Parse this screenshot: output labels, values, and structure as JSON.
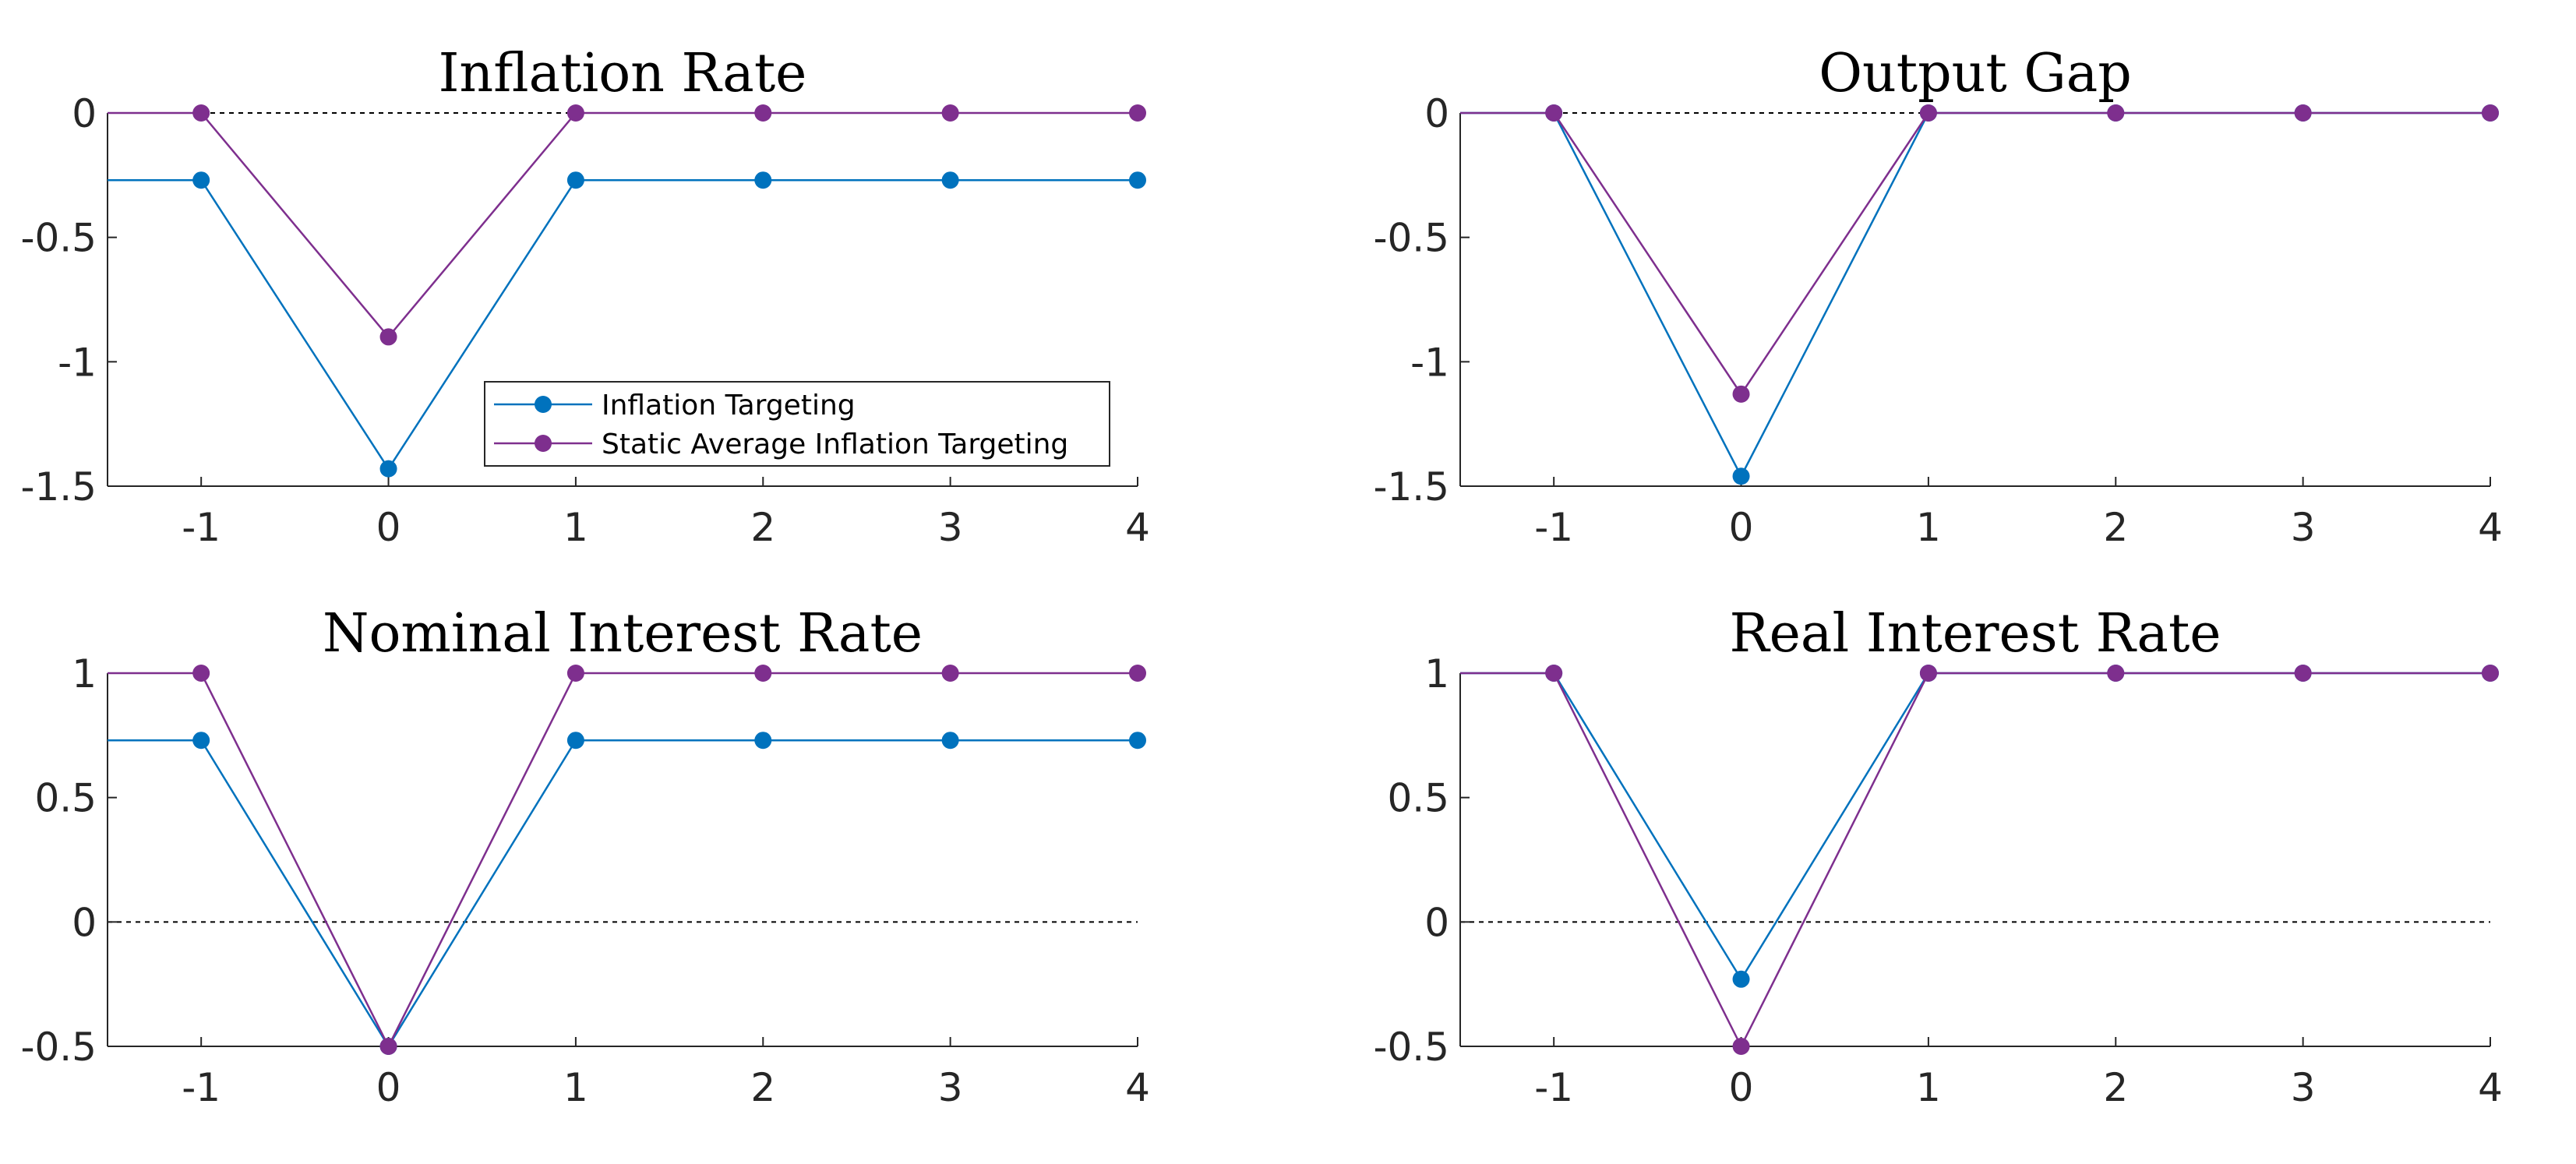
{
  "colors": {
    "inflation_targeting": "#0072BD",
    "static_average_inflation_targeting": "#7E2F8E",
    "axis": "#262626",
    "zero_line": "#000000"
  },
  "legend": {
    "placement": "inside-bottom-right of Inflation Rate panel",
    "entries": [
      "Inflation Targeting",
      "Static Average Inflation Targeting"
    ]
  },
  "chart_data": [
    {
      "type": "line",
      "title": "Inflation Rate",
      "xlabel": "",
      "ylabel": "",
      "xlim": [
        -1.5,
        4
      ],
      "ylim": [
        -1.5,
        0
      ],
      "x_ticks": [
        "-1",
        "0",
        "1",
        "2",
        "3",
        "4"
      ],
      "y_ticks": [
        "0",
        "-0.5",
        "-1",
        "-1.5"
      ],
      "zero_line": true,
      "grid": false,
      "x": [
        -1,
        0,
        1,
        2,
        3,
        4
      ],
      "series": [
        {
          "name": "Inflation Targeting",
          "values": [
            -0.27,
            -1.43,
            -0.27,
            -0.27,
            -0.27,
            -0.27
          ]
        },
        {
          "name": "Static Average Inflation Targeting",
          "values": [
            0,
            -0.9,
            0,
            0,
            0,
            0
          ]
        }
      ]
    },
    {
      "type": "line",
      "title": "Output Gap",
      "xlabel": "",
      "ylabel": "",
      "xlim": [
        -1.5,
        4
      ],
      "ylim": [
        -1.5,
        0
      ],
      "x_ticks": [
        "-1",
        "0",
        "1",
        "2",
        "3",
        "4"
      ],
      "y_ticks": [
        "0",
        "-0.5",
        "-1",
        "-1.5"
      ],
      "zero_line": true,
      "grid": false,
      "x": [
        -1,
        0,
        1,
        2,
        3,
        4
      ],
      "series": [
        {
          "name": "Inflation Targeting",
          "values": [
            0,
            -1.46,
            0,
            0,
            0,
            0
          ]
        },
        {
          "name": "Static Average Inflation Targeting",
          "values": [
            0,
            -1.13,
            0,
            0,
            0,
            0
          ]
        }
      ]
    },
    {
      "type": "line",
      "title": "Nominal Interest Rate",
      "xlabel": "",
      "ylabel": "",
      "xlim": [
        -1.5,
        4
      ],
      "ylim": [
        -0.5,
        1
      ],
      "x_ticks": [
        "-1",
        "0",
        "1",
        "2",
        "3",
        "4"
      ],
      "y_ticks": [
        "1",
        "0.5",
        "0",
        "-0.5"
      ],
      "zero_line": true,
      "grid": false,
      "x": [
        -1,
        0,
        1,
        2,
        3,
        4
      ],
      "series": [
        {
          "name": "Inflation Targeting",
          "values": [
            0.73,
            -0.5,
            0.73,
            0.73,
            0.73,
            0.73
          ]
        },
        {
          "name": "Static Average Inflation Targeting",
          "values": [
            1,
            -0.5,
            1,
            1,
            1,
            1
          ]
        }
      ]
    },
    {
      "type": "line",
      "title": "Real Interest Rate",
      "xlabel": "",
      "ylabel": "",
      "xlim": [
        -1.5,
        4
      ],
      "ylim": [
        -0.5,
        1
      ],
      "x_ticks": [
        "-1",
        "0",
        "1",
        "2",
        "3",
        "4"
      ],
      "y_ticks": [
        "1",
        "0.5",
        "0",
        "-0.5"
      ],
      "zero_line": true,
      "grid": false,
      "x": [
        -1,
        0,
        1,
        2,
        3,
        4
      ],
      "series": [
        {
          "name": "Inflation Targeting",
          "values": [
            1,
            -0.23,
            1,
            1,
            1,
            1
          ]
        },
        {
          "name": "Static Average Inflation Targeting",
          "values": [
            1,
            -0.5,
            1,
            1,
            1,
            1
          ]
        }
      ]
    }
  ]
}
